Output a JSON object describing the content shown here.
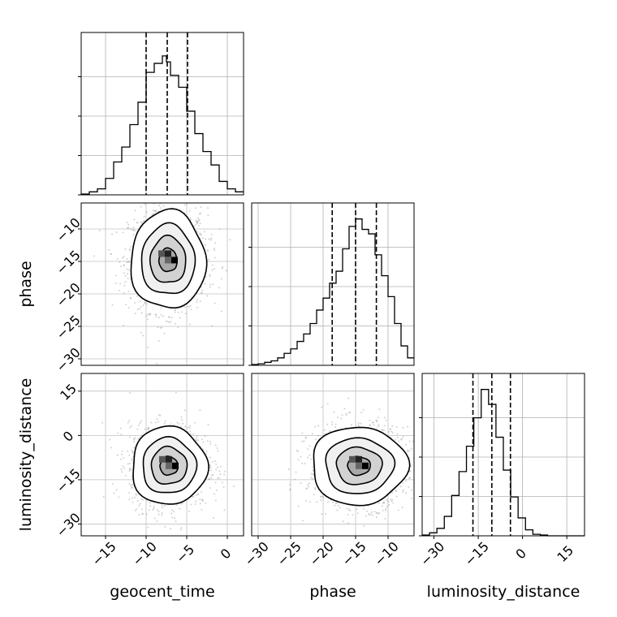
{
  "chart_data": {
    "type": "corner",
    "parameters": [
      "geocent_time",
      "phase",
      "luminosity_distance"
    ],
    "ranges": {
      "geocent_time": [
        -18,
        2
      ],
      "phase": [
        -31,
        -6
      ],
      "luminosity_distance": [
        -34,
        21
      ]
    },
    "ticks": {
      "geocent_time": [
        -15,
        -10,
        -5,
        0
      ],
      "phase": [
        -30,
        -25,
        -20,
        -15,
        -10
      ],
      "luminosity_distance": [
        -30,
        -15,
        0,
        15
      ]
    },
    "tick_labels": {
      "geocent_time": [
        "−15",
        "−10",
        "−5",
        "0"
      ],
      "phase": [
        "−30",
        "−25",
        "−20",
        "−15",
        "−10"
      ],
      "luminosity_distance": [
        "−30",
        "−15",
        "0",
        "15"
      ]
    },
    "quantiles": {
      "geocent_time": [
        -10,
        -7.4,
        -4.9
      ],
      "phase": [
        -18.6,
        -15.0,
        -11.8
      ],
      "luminosity_distance": [
        -16.8,
        -10.4,
        -4.1
      ]
    },
    "histograms": {
      "geocent_time": {
        "edges": [
          -18,
          -17,
          -16,
          -15,
          -14,
          -13,
          -12,
          -11,
          -10,
          -9,
          -8,
          -7.5,
          -7,
          -6,
          -5,
          -4,
          -3,
          -2,
          -1,
          0,
          1,
          2
        ],
        "counts": [
          0.005,
          0.02,
          0.04,
          0.11,
          0.22,
          0.32,
          0.47,
          0.62,
          0.82,
          0.88,
          0.93,
          0.89,
          0.8,
          0.72,
          0.56,
          0.41,
          0.29,
          0.2,
          0.09,
          0.04,
          0.02
        ]
      },
      "phase": {
        "edges": [
          -31,
          -30,
          -29,
          -28,
          -27,
          -26,
          -25,
          -24,
          -23,
          -22,
          -21,
          -20,
          -19,
          -18,
          -17,
          -16,
          -15,
          -14,
          -13,
          -12,
          -11,
          -10,
          -9,
          -8,
          -7,
          -6
        ],
        "counts": [
          0.005,
          0.01,
          0.02,
          0.03,
          0.05,
          0.08,
          0.11,
          0.16,
          0.21,
          0.28,
          0.37,
          0.45,
          0.55,
          0.63,
          0.78,
          0.93,
          0.98,
          0.91,
          0.88,
          0.74,
          0.6,
          0.46,
          0.28,
          0.13,
          0.05
        ]
      },
      "luminosity_distance": {
        "edges": [
          -34,
          -31.5,
          -29,
          -26.5,
          -24,
          -21.5,
          -19,
          -16.5,
          -14,
          -11.5,
          -9,
          -6.5,
          -4,
          -1.5,
          1,
          3.5,
          6,
          8.5,
          11,
          13.5,
          16,
          18.5,
          21
        ],
        "counts": [
          0.005,
          0.02,
          0.05,
          0.13,
          0.27,
          0.43,
          0.6,
          0.79,
          0.98,
          0.88,
          0.66,
          0.44,
          0.26,
          0.12,
          0.04,
          0.01,
          0.005,
          0.0,
          0.0,
          0.0,
          0.0,
          0.0
        ]
      }
    },
    "joint_2d": [
      {
        "x": "geocent_time",
        "y": "phase",
        "center": [
          -7.3,
          -14.8
        ],
        "sigma": [
          2.2,
          3.6
        ]
      },
      {
        "x": "geocent_time",
        "y": "luminosity_distance",
        "center": [
          -7.2,
          -10.3
        ],
        "sigma": [
          2.2,
          6.3
        ]
      },
      {
        "x": "phase",
        "y": "luminosity_distance",
        "center": [
          -14.5,
          -10.3
        ],
        "sigma": [
          3.5,
          6.3
        ]
      }
    ],
    "contour_levels": [
      "0.5σ",
      "1σ",
      "1.5σ",
      "2σ"
    ],
    "scatter_style": "light grey points",
    "grid": true,
    "xlabels": [
      "geocent_time",
      "phase",
      "luminosity_distance"
    ],
    "ylabels": [
      "",
      "phase",
      "luminosity_distance"
    ]
  }
}
